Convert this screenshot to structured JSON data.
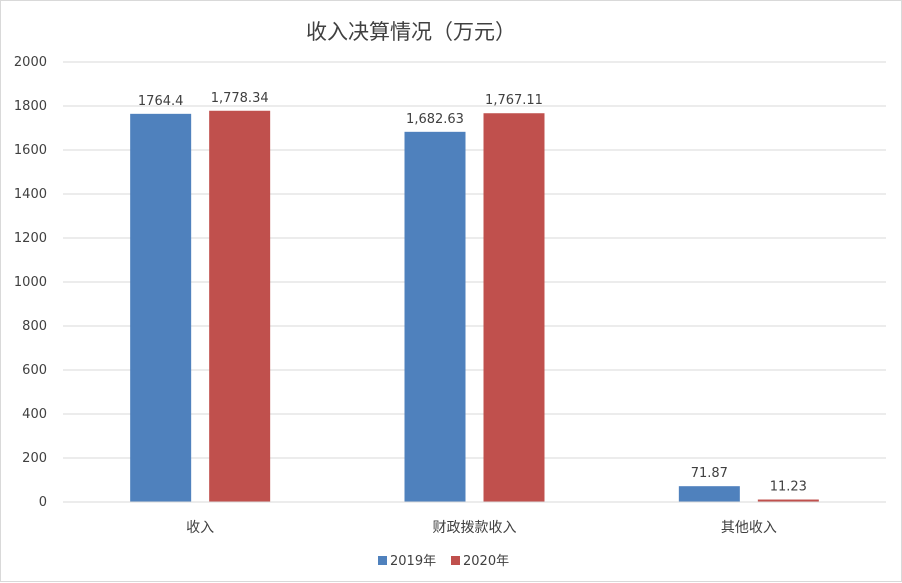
{
  "chart_data": {
    "type": "bar",
    "title": "收入决算情况（万元）",
    "categories": [
      "收入",
      "财政拨款收入",
      "其他收入"
    ],
    "series": [
      {
        "name": "2019年",
        "color": "#4f81bd",
        "values": [
          1764.4,
          1682.63,
          71.87
        ],
        "labels": [
          "1764.4",
          "1,682.63",
          "71.87"
        ]
      },
      {
        "name": "2020年",
        "color": "#c0504d",
        "values": [
          1778.34,
          1767.11,
          11.23
        ],
        "labels": [
          "1,778.34",
          "1,767.11",
          "11.23"
        ]
      }
    ],
    "yticks": [
      "0",
      "200",
      "400",
      "600",
      "800",
      "1000",
      "1200",
      "1400",
      "1600",
      "1800",
      "2000"
    ],
    "ylim": [
      0,
      2000
    ],
    "grid": true,
    "legend_position": "bottom"
  }
}
